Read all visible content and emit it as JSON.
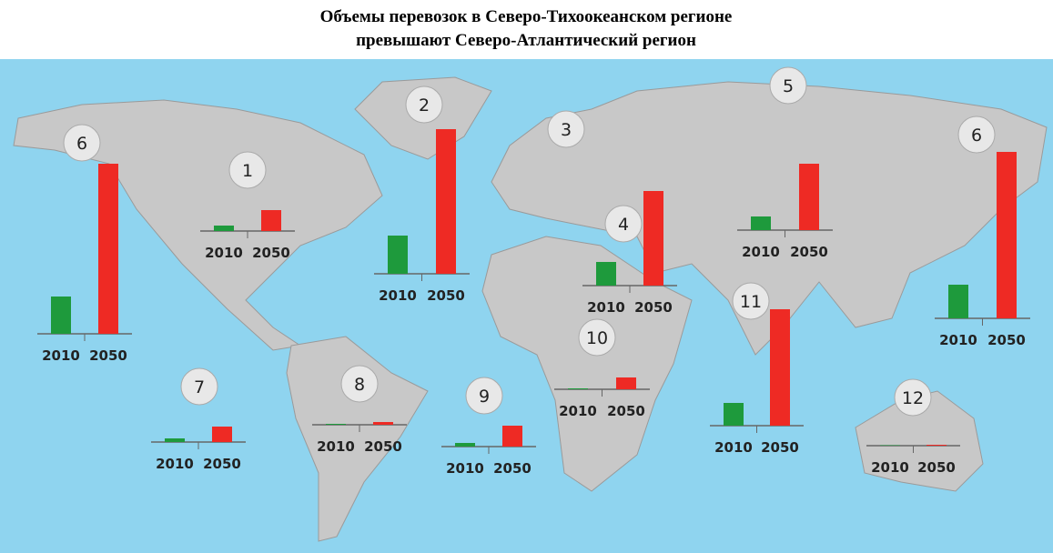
{
  "title": [
    "Объемы перевозок в Северо-Тихоокеанском регионе",
    "превышают Северо-Атлантический регион"
  ],
  "markers": [
    "3",
    "5"
  ],
  "chart_data": [
    {
      "type": "bar",
      "title": "1",
      "categories": [
        "2010",
        "2050"
      ],
      "values": [
        6,
        23
      ],
      "colors": [
        "#1e9a3c",
        "#ee2a24"
      ]
    },
    {
      "type": "bar",
      "title": "2",
      "categories": [
        "2010",
        "2050"
      ],
      "values": [
        42,
        159
      ],
      "colors": [
        "#1e9a3c",
        "#ee2a24"
      ]
    },
    {
      "type": "bar",
      "title": "4",
      "categories": [
        "2010",
        "2050"
      ],
      "values": [
        26,
        104
      ],
      "colors": [
        "#1e9a3c",
        "#ee2a24"
      ]
    },
    {
      "type": "bar",
      "categories": [
        "2010",
        "2050"
      ],
      "values": [
        15,
        73
      ],
      "colors": [
        "#1e9a3c",
        "#ee2a24"
      ]
    },
    {
      "type": "bar",
      "title": "6",
      "categories": [
        "2010",
        "2050"
      ],
      "values": [
        37,
        183
      ],
      "colors": [
        "#1e9a3c",
        "#ee2a24"
      ]
    },
    {
      "type": "bar",
      "title": "6",
      "categories": [
        "2010",
        "2050"
      ],
      "values": [
        41,
        187
      ],
      "colors": [
        "#1e9a3c",
        "#ee2a24"
      ]
    },
    {
      "type": "bar",
      "title": "7",
      "categories": [
        "2010",
        "2050"
      ],
      "values": [
        4,
        17
      ],
      "colors": [
        "#1e9a3c",
        "#ee2a24"
      ]
    },
    {
      "type": "bar",
      "title": "8",
      "categories": [
        "2010",
        "2050"
      ],
      "values": [
        1,
        3
      ],
      "colors": [
        "#1e9a3c",
        "#ee2a24"
      ]
    },
    {
      "type": "bar",
      "title": "9",
      "categories": [
        "2010",
        "2050"
      ],
      "values": [
        4,
        23
      ],
      "colors": [
        "#1e9a3c",
        "#ee2a24"
      ]
    },
    {
      "type": "bar",
      "title": "10",
      "categories": [
        "2010",
        "2050"
      ],
      "values": [
        1,
        13
      ],
      "colors": [
        "#1e9a3c",
        "#ee2a24"
      ]
    },
    {
      "type": "bar",
      "title": "11",
      "categories": [
        "2010",
        "2050"
      ],
      "values": [
        25,
        128
      ],
      "colors": [
        "#1e9a3c",
        "#ee2a24"
      ]
    },
    {
      "type": "bar",
      "title": "12",
      "categories": [
        "2010",
        "2050"
      ],
      "values": [
        0.5,
        1
      ],
      "colors": [
        "#1e9a3c",
        "#ee2a24"
      ]
    }
  ]
}
